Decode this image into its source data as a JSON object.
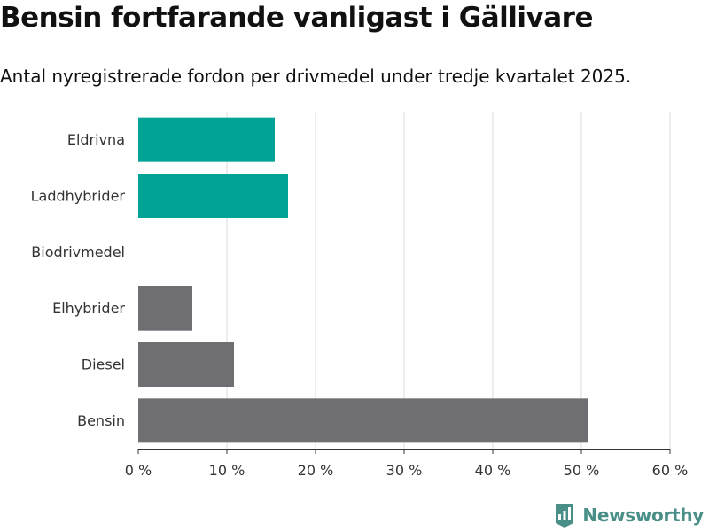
{
  "header": {
    "title": "Bensin fortfarande vanligast i Gällivare",
    "subtitle": "Antal nyregistrerade fordon per drivmedel under tredje kvartalet 2025."
  },
  "branding": {
    "logo_text": "Newsworthy",
    "logo_icon": "newsworthy-chart-icon",
    "logo_color": "#4a8f87"
  },
  "colors": {
    "highlight": "#00a396",
    "neutral": "#6e6e73",
    "grid": "#dddddd",
    "axis": "#333333"
  },
  "chart_data": {
    "type": "bar",
    "orientation": "horizontal",
    "categories": [
      "Eldrivna",
      "Laddhybrider",
      "Biodrivmedel",
      "Elhybrider",
      "Diesel",
      "Bensin"
    ],
    "values": [
      15.4,
      16.9,
      0,
      6.1,
      10.8,
      50.8
    ],
    "highlighted": [
      true,
      true,
      false,
      false,
      false,
      false
    ],
    "xlim": [
      0,
      60
    ],
    "xticks": [
      0,
      10,
      20,
      30,
      40,
      50,
      60
    ],
    "tick_suffix": " %",
    "grid": true,
    "xlabel": "",
    "ylabel": ""
  }
}
